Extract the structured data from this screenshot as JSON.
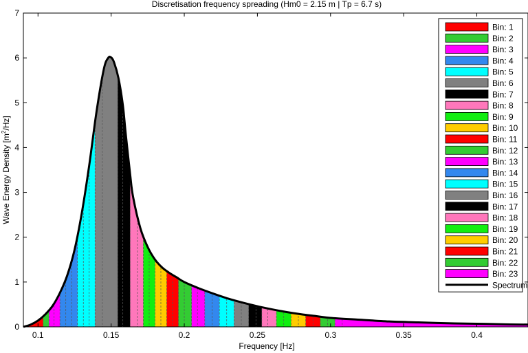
{
  "chart_data": {
    "type": "area",
    "title": "Discretisation frequency spreading (Hm0 = 2.15 m | Tp = 6.7 s)",
    "xlabel": "Frequency [Hz]",
    "ylabel_main": "Wave Energy Density [m",
    "ylabel_sup": "2",
    "ylabel_end": "/Hz]",
    "xlim": [
      0.09,
      0.435
    ],
    "ylim": [
      0,
      7
    ],
    "x_ticks": [
      0.1,
      0.15,
      0.2,
      0.25,
      0.3,
      0.35,
      0.4
    ],
    "x_tick_labels": [
      "0.1",
      "0.15",
      "0.2",
      "0.25",
      "0.3",
      "0.35",
      "0.4"
    ],
    "y_ticks": [
      0,
      1,
      2,
      3,
      4,
      5,
      6,
      7
    ],
    "y_tick_labels": [
      "0",
      "1",
      "2",
      "3",
      "4",
      "5",
      "6",
      "7"
    ],
    "spectrum": {
      "name": "Spectrum",
      "x": [
        0.09,
        0.095,
        0.1,
        0.105,
        0.11,
        0.115,
        0.12,
        0.125,
        0.13,
        0.135,
        0.14,
        0.145,
        0.148,
        0.15,
        0.152,
        0.155,
        0.158,
        0.16,
        0.163,
        0.165,
        0.17,
        0.175,
        0.18,
        0.185,
        0.19,
        0.195,
        0.2,
        0.21,
        0.22,
        0.23,
        0.24,
        0.25,
        0.26,
        0.27,
        0.28,
        0.29,
        0.3,
        0.32,
        0.34,
        0.36,
        0.38,
        0.4,
        0.42,
        0.435
      ],
      "y": [
        0.0,
        0.05,
        0.14,
        0.28,
        0.47,
        0.76,
        1.15,
        1.72,
        2.55,
        3.6,
        4.8,
        5.75,
        6.0,
        6.01,
        5.9,
        5.55,
        4.95,
        4.3,
        3.4,
        2.9,
        2.2,
        1.78,
        1.5,
        1.32,
        1.2,
        1.1,
        1.0,
        0.86,
        0.74,
        0.63,
        0.54,
        0.46,
        0.39,
        0.33,
        0.28,
        0.24,
        0.2,
        0.16,
        0.12,
        0.1,
        0.08,
        0.07,
        0.055,
        0.05
      ]
    },
    "bins": [
      {
        "name": "Bin: 1",
        "color": "#ff0000"
      },
      {
        "name": "Bin: 2",
        "color": "#33cc33"
      },
      {
        "name": "Bin: 3",
        "color": "#ff00ff"
      },
      {
        "name": "Bin: 4",
        "color": "#3388ee"
      },
      {
        "name": "Bin: 5",
        "color": "#00ffff"
      },
      {
        "name": "Bin: 6",
        "color": "#808080"
      },
      {
        "name": "Bin: 7",
        "color": "#000000"
      },
      {
        "name": "Bin: 8",
        "color": "#ff77bb"
      },
      {
        "name": "Bin: 9",
        "color": "#11ee11"
      },
      {
        "name": "Bin: 10",
        "color": "#ffcc00"
      },
      {
        "name": "Bin: 11",
        "color": "#ff0000"
      },
      {
        "name": "Bin: 12",
        "color": "#33cc33"
      },
      {
        "name": "Bin: 13",
        "color": "#ff00ff"
      },
      {
        "name": "Bin: 14",
        "color": "#3388ee"
      },
      {
        "name": "Bin: 15",
        "color": "#00ffff"
      },
      {
        "name": "Bin: 16",
        "color": "#808080"
      },
      {
        "name": "Bin: 17",
        "color": "#000000"
      },
      {
        "name": "Bin: 18",
        "color": "#ff77bb"
      },
      {
        "name": "Bin: 19",
        "color": "#11ee11"
      },
      {
        "name": "Bin: 20",
        "color": "#ffcc00"
      },
      {
        "name": "Bin: 21",
        "color": "#ff0000"
      },
      {
        "name": "Bin: 22",
        "color": "#33cc33"
      },
      {
        "name": "Bin: 23",
        "color": "#ff00ff"
      }
    ],
    "strip_edges": [
      0.09,
      0.1,
      0.1035,
      0.1075,
      0.111,
      0.115,
      0.119,
      0.123,
      0.127,
      0.131,
      0.135,
      0.139,
      0.144,
      0.1545,
      0.158,
      0.163,
      0.168,
      0.172,
      0.176,
      0.18,
      0.184,
      0.188,
      0.192,
      0.196,
      0.2,
      0.205,
      0.209,
      0.214,
      0.219,
      0.224,
      0.229,
      0.234,
      0.239,
      0.244,
      0.249,
      0.253,
      0.257,
      0.263,
      0.268,
      0.273,
      0.278,
      0.283,
      0.288,
      0.293,
      0.298,
      0.303,
      0.308,
      0.435
    ],
    "strip_bins": [
      1,
      1,
      2,
      3,
      3,
      4,
      4,
      4,
      5,
      5,
      5,
      6,
      6,
      7,
      7,
      8,
      8,
      9,
      9,
      10,
      10,
      11,
      11,
      12,
      12,
      13,
      13,
      14,
      14,
      15,
      15,
      16,
      16,
      17,
      17,
      18,
      18,
      19,
      19,
      20,
      20,
      21,
      21,
      22,
      22,
      23,
      23
    ],
    "legend_position": "top-right",
    "grid": false
  }
}
